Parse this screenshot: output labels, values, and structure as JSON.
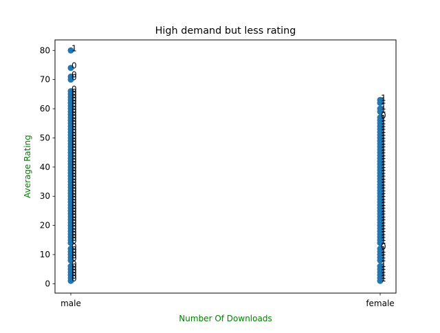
{
  "chart_data": {
    "type": "scatter",
    "title": "High demand but less rating",
    "xlabel": "Number Of Downloads",
    "ylabel": "Average Rating",
    "label_color": "#008000",
    "marker_color": "#1f77b4",
    "categories": [
      "male",
      "female"
    ],
    "ylim": [
      -3.2,
      83.6
    ],
    "yticks": [
      0,
      10,
      20,
      30,
      40,
      50,
      60,
      70,
      80
    ],
    "grid": false,
    "series": [
      {
        "category": "male",
        "points": [
          {
            "y": 80,
            "label": "1"
          },
          {
            "y": 74,
            "label": "0"
          },
          {
            "y": 71,
            "label": "0"
          },
          {
            "y": 70,
            "label": "0"
          },
          {
            "y": 66,
            "label": "0"
          },
          {
            "y": 65,
            "label": "0"
          },
          {
            "y": 64,
            "label": "0"
          },
          {
            "y": 63,
            "label": "0"
          },
          {
            "y": 62,
            "label": "0"
          },
          {
            "y": 61,
            "label": "0"
          },
          {
            "y": 60,
            "label": "0"
          },
          {
            "y": 59,
            "label": "0"
          },
          {
            "y": 58,
            "label": "0"
          },
          {
            "y": 57,
            "label": "0"
          },
          {
            "y": 56,
            "label": "0"
          },
          {
            "y": 55,
            "label": "0"
          },
          {
            "y": 54,
            "label": "0"
          },
          {
            "y": 53,
            "label": "0"
          },
          {
            "y": 52,
            "label": "0"
          },
          {
            "y": 51,
            "label": "0"
          },
          {
            "y": 50,
            "label": "0"
          },
          {
            "y": 49,
            "label": "0"
          },
          {
            "y": 48,
            "label": "0"
          },
          {
            "y": 47,
            "label": "0"
          },
          {
            "y": 46,
            "label": "0"
          },
          {
            "y": 45,
            "label": "0"
          },
          {
            "y": 44,
            "label": "0"
          },
          {
            "y": 43,
            "label": "0"
          },
          {
            "y": 42,
            "label": "0"
          },
          {
            "y": 41,
            "label": "0"
          },
          {
            "y": 40,
            "label": "0"
          },
          {
            "y": 39,
            "label": "0"
          },
          {
            "y": 38,
            "label": "0"
          },
          {
            "y": 37,
            "label": "0"
          },
          {
            "y": 36,
            "label": "0"
          },
          {
            "y": 35,
            "label": "0"
          },
          {
            "y": 34,
            "label": "0"
          },
          {
            "y": 33,
            "label": "0"
          },
          {
            "y": 32,
            "label": "0"
          },
          {
            "y": 31,
            "label": "0"
          },
          {
            "y": 30,
            "label": "0"
          },
          {
            "y": 29,
            "label": "0"
          },
          {
            "y": 28,
            "label": "0"
          },
          {
            "y": 27,
            "label": "0"
          },
          {
            "y": 26,
            "label": "0"
          },
          {
            "y": 25,
            "label": "0"
          },
          {
            "y": 24,
            "label": "0"
          },
          {
            "y": 23,
            "label": "0"
          },
          {
            "y": 22,
            "label": "0"
          },
          {
            "y": 21,
            "label": "0"
          },
          {
            "y": 20,
            "label": "0"
          },
          {
            "y": 19,
            "label": "0"
          },
          {
            "y": 18,
            "label": "0"
          },
          {
            "y": 17,
            "label": "0"
          },
          {
            "y": 16,
            "label": "0"
          },
          {
            "y": 15,
            "label": "0"
          },
          {
            "y": 14,
            "label": "0"
          },
          {
            "y": 12,
            "label": "0"
          },
          {
            "y": 11,
            "label": "0"
          },
          {
            "y": 10,
            "label": "0"
          },
          {
            "y": 9,
            "label": "0"
          },
          {
            "y": 8,
            "label": "0"
          },
          {
            "y": 6,
            "label": "0"
          },
          {
            "y": 5,
            "label": "0"
          },
          {
            "y": 4,
            "label": "0"
          },
          {
            "y": 3,
            "label": "0"
          },
          {
            "y": 2,
            "label": "0"
          },
          {
            "y": 1,
            "label": "0"
          }
        ]
      },
      {
        "category": "female",
        "points": [
          {
            "y": 63,
            "label": "1"
          },
          {
            "y": 62,
            "label": "1"
          },
          {
            "y": 60,
            "label": "1"
          },
          {
            "y": 59,
            "label": "1"
          },
          {
            "y": 57,
            "label": "0"
          },
          {
            "y": 56,
            "label": "1"
          },
          {
            "y": 55,
            "label": "1"
          },
          {
            "y": 54,
            "label": "1"
          },
          {
            "y": 53,
            "label": "1"
          },
          {
            "y": 52,
            "label": "1"
          },
          {
            "y": 51,
            "label": "1"
          },
          {
            "y": 50,
            "label": "1"
          },
          {
            "y": 49,
            "label": "1"
          },
          {
            "y": 48,
            "label": "1"
          },
          {
            "y": 47,
            "label": "1"
          },
          {
            "y": 46,
            "label": "1"
          },
          {
            "y": 45,
            "label": "1"
          },
          {
            "y": 44,
            "label": "1"
          },
          {
            "y": 43,
            "label": "1"
          },
          {
            "y": 42,
            "label": "1"
          },
          {
            "y": 41,
            "label": "1"
          },
          {
            "y": 40,
            "label": "1"
          },
          {
            "y": 39,
            "label": "1"
          },
          {
            "y": 38,
            "label": "1"
          },
          {
            "y": 37,
            "label": "1"
          },
          {
            "y": 36,
            "label": "1"
          },
          {
            "y": 35,
            "label": "1"
          },
          {
            "y": 34,
            "label": "1"
          },
          {
            "y": 33,
            "label": "1"
          },
          {
            "y": 32,
            "label": "1"
          },
          {
            "y": 31,
            "label": "1"
          },
          {
            "y": 30,
            "label": "1"
          },
          {
            "y": 29,
            "label": "1"
          },
          {
            "y": 28,
            "label": "1"
          },
          {
            "y": 27,
            "label": "1"
          },
          {
            "y": 26,
            "label": "1"
          },
          {
            "y": 25,
            "label": "1"
          },
          {
            "y": 24,
            "label": "1"
          },
          {
            "y": 23,
            "label": "1"
          },
          {
            "y": 22,
            "label": "1"
          },
          {
            "y": 21,
            "label": "1"
          },
          {
            "y": 20,
            "label": "1"
          },
          {
            "y": 19,
            "label": "1"
          },
          {
            "y": 18,
            "label": "1"
          },
          {
            "y": 17,
            "label": "1"
          },
          {
            "y": 16,
            "label": "1"
          },
          {
            "y": 15,
            "label": "1"
          },
          {
            "y": 14,
            "label": "1"
          },
          {
            "y": 12,
            "label": "0"
          },
          {
            "y": 11,
            "label": "1"
          },
          {
            "y": 10,
            "label": "1"
          },
          {
            "y": 9,
            "label": "1"
          },
          {
            "y": 8,
            "label": "1"
          },
          {
            "y": 6,
            "label": "1"
          },
          {
            "y": 5,
            "label": "1"
          },
          {
            "y": 4,
            "label": "1"
          },
          {
            "y": 3,
            "label": "1"
          },
          {
            "y": 2,
            "label": "1"
          },
          {
            "y": 1,
            "label": "1"
          }
        ]
      }
    ]
  }
}
